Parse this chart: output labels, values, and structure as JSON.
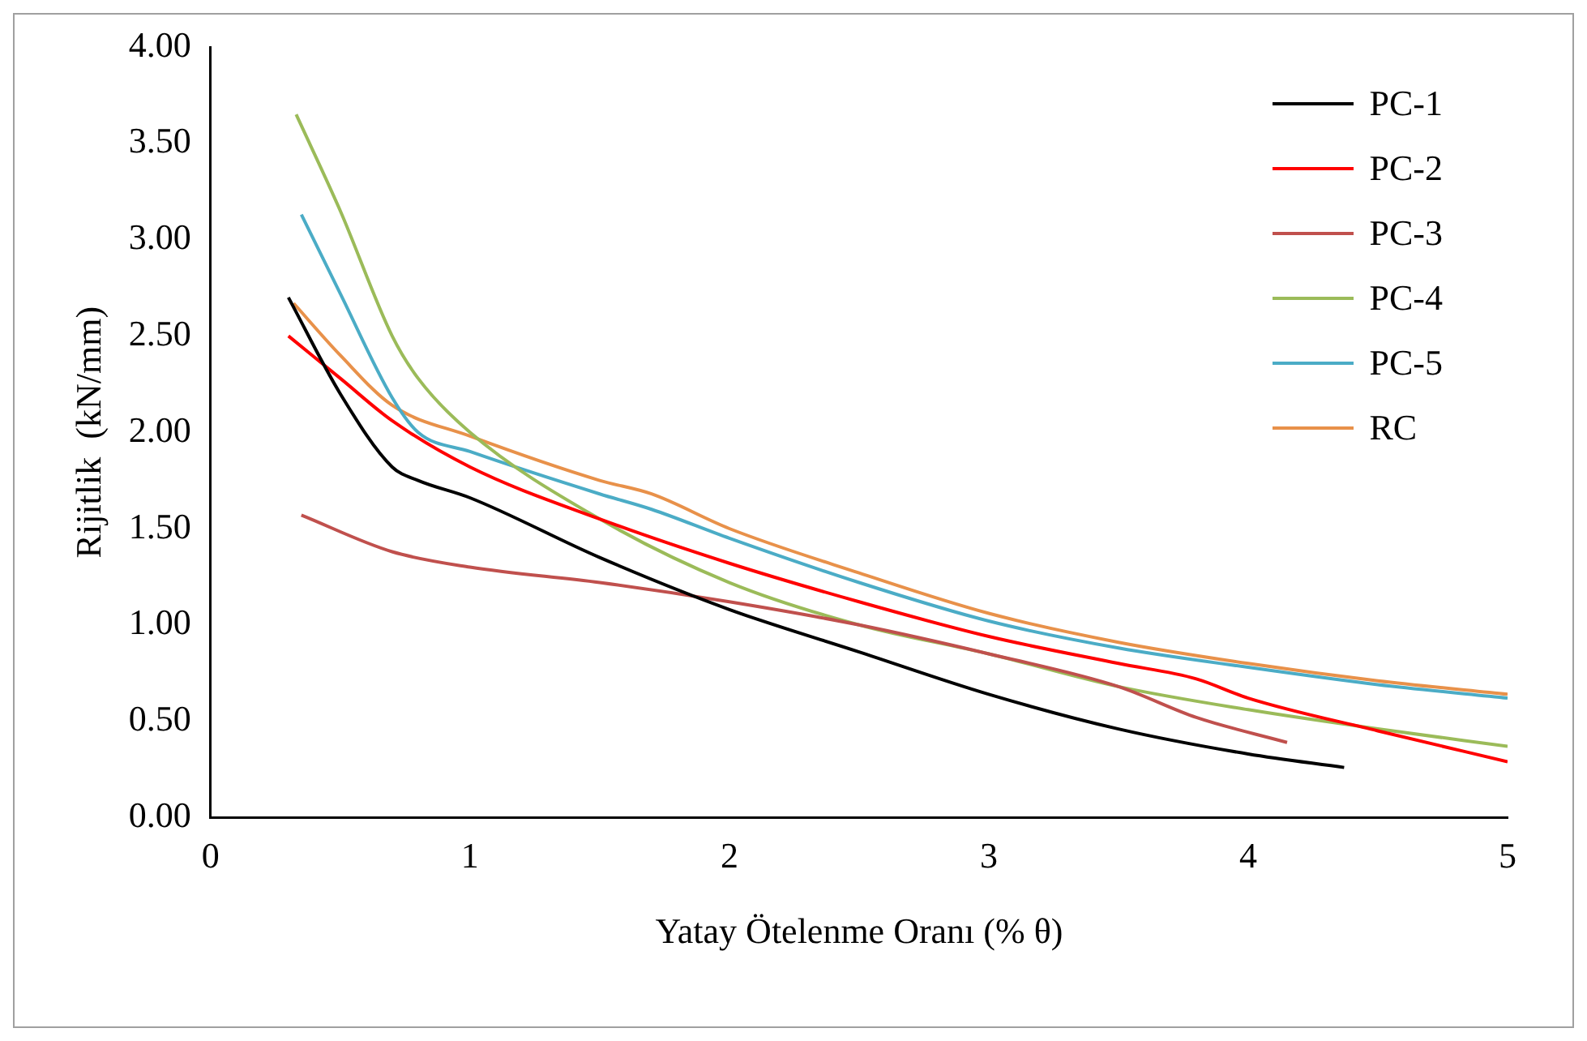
{
  "chart_data": {
    "type": "line",
    "xlabel": "Yatay Ötelenme Oranı (% θ)",
    "ylabel": "Rijitlik  (kN/mm)",
    "xlim": [
      0,
      5
    ],
    "xticks": [
      0,
      1,
      2,
      3,
      4,
      5
    ],
    "ylim": [
      0,
      4
    ],
    "yticks": [
      {
        "value": 0,
        "label": "0.00"
      },
      {
        "value": 0.5,
        "label": "0.50"
      },
      {
        "value": 1,
        "label": "1.00"
      },
      {
        "value": 1.5,
        "label": "1.50"
      },
      {
        "value": 2,
        "label": "2.00"
      },
      {
        "value": 2.5,
        "label": "2.50"
      },
      {
        "value": 3,
        "label": "3.00"
      },
      {
        "value": 3.5,
        "label": "3.50"
      },
      {
        "value": 4,
        "label": "4.00"
      }
    ],
    "grid": false,
    "legend": "top right",
    "marker": "none",
    "line_style": "solid",
    "series": [
      {
        "name": "PC-1",
        "color": "#000000",
        "x": [
          0.3,
          0.5,
          0.7,
          0.8,
          1,
          1.5,
          2,
          2.5,
          3,
          3.5,
          4,
          4.37
        ],
        "values": [
          2.7,
          2.2,
          1.82,
          1.75,
          1.66,
          1.35,
          1.08,
          0.86,
          0.64,
          0.46,
          0.33,
          0.26
        ]
      },
      {
        "name": "PC-2",
        "color": "#ff0000",
        "x": [
          0.3,
          0.5,
          0.7,
          1,
          1.5,
          2,
          2.5,
          3,
          3.5,
          3.8,
          4,
          4.5,
          5
        ],
        "values": [
          2.5,
          2.28,
          2.06,
          1.82,
          1.55,
          1.32,
          1.12,
          0.94,
          0.8,
          0.72,
          0.62,
          0.45,
          0.29
        ]
      },
      {
        "name": "PC-3",
        "color": "#c0504d",
        "x": [
          0.35,
          0.7,
          1,
          1.5,
          2,
          2.5,
          3,
          3.5,
          3.8,
          4.15
        ],
        "values": [
          1.57,
          1.38,
          1.3,
          1.22,
          1.12,
          1.0,
          0.85,
          0.68,
          0.52,
          0.39
        ]
      },
      {
        "name": "PC-4",
        "color": "#9bbb59",
        "x": [
          0.33,
          0.5,
          0.7,
          0.8,
          1,
          1.5,
          2,
          2.5,
          3,
          3.5,
          4,
          4.5,
          5
        ],
        "values": [
          3.65,
          3.15,
          2.5,
          2.28,
          2.0,
          1.55,
          1.22,
          1.0,
          0.85,
          0.68,
          0.56,
          0.46,
          0.37
        ]
      },
      {
        "name": "PC-5",
        "color": "#4bacc6",
        "x": [
          0.35,
          0.5,
          0.7,
          0.8,
          1,
          1.5,
          1.7,
          2,
          2.5,
          3,
          3.5,
          4,
          4.5,
          5
        ],
        "values": [
          3.13,
          2.72,
          2.18,
          2.0,
          1.9,
          1.68,
          1.6,
          1.45,
          1.22,
          1.02,
          0.88,
          0.78,
          0.69,
          0.62
        ]
      },
      {
        "name": "RC",
        "color": "#e8914a",
        "x": [
          0.32,
          0.5,
          0.7,
          1,
          1.5,
          1.7,
          2,
          2.5,
          3,
          3.5,
          4,
          4.5,
          5
        ],
        "values": [
          2.67,
          2.4,
          2.14,
          1.98,
          1.75,
          1.68,
          1.5,
          1.27,
          1.06,
          0.91,
          0.8,
          0.71,
          0.64
        ]
      }
    ]
  }
}
